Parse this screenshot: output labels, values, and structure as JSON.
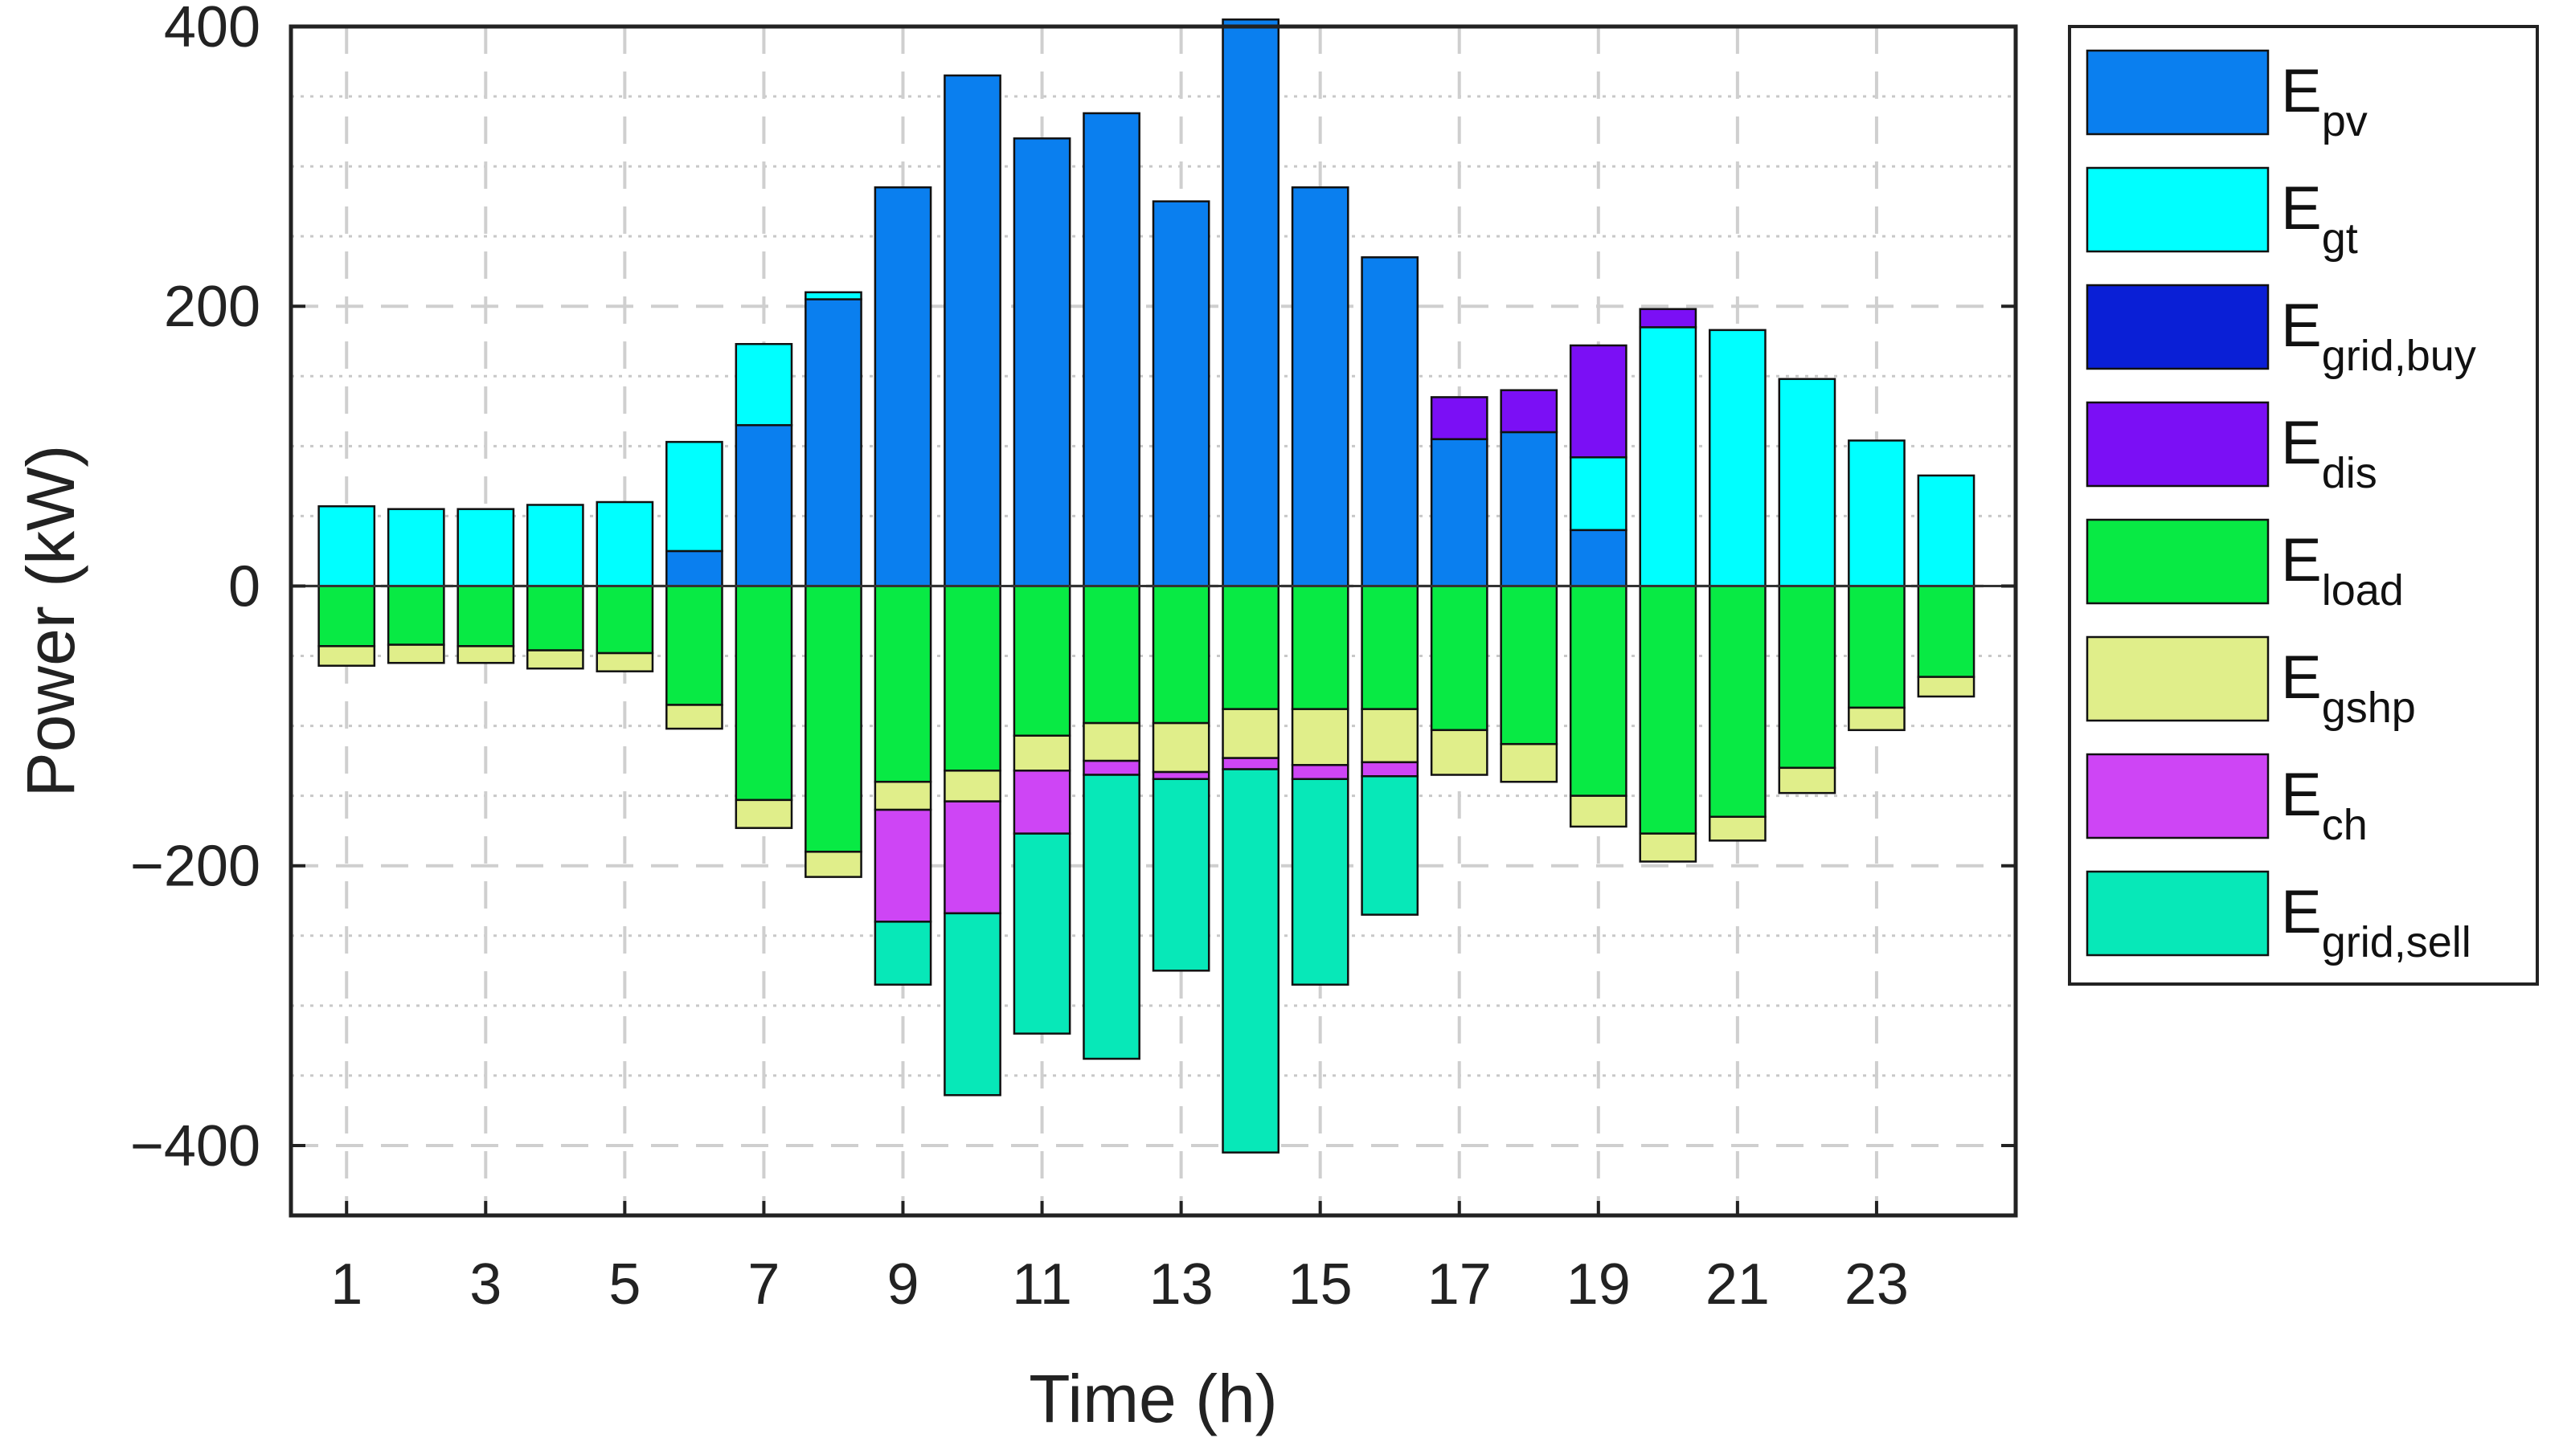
{
  "chart_data": {
    "type": "bar",
    "stacked": true,
    "title": "",
    "xlabel": "Time (h)",
    "ylabel": "Power (kW)",
    "ylim": [
      -450,
      400
    ],
    "yticks": [
      -400,
      -200,
      0,
      200,
      400
    ],
    "ytick_labels": [
      "−400",
      "−200",
      "0",
      "200",
      "400"
    ],
    "xlim": [
      0.2,
      25
    ],
    "xticks": [
      1,
      3,
      5,
      7,
      9,
      11,
      13,
      15,
      17,
      19,
      21,
      23
    ],
    "xtick_labels": [
      "1",
      "3",
      "5",
      "7",
      "9",
      "11",
      "13",
      "15",
      "17",
      "19",
      "21",
      "23"
    ],
    "grid": true,
    "legend_position": "outside-right",
    "categories": [
      1,
      2,
      3,
      4,
      5,
      6,
      7,
      8,
      9,
      10,
      11,
      12,
      13,
      14,
      15,
      16,
      17,
      18,
      19,
      20,
      21,
      22,
      23,
      24
    ],
    "series": [
      {
        "name": "E",
        "sub": "pv",
        "color": "#0A7FEF",
        "values": [
          0,
          0,
          0,
          0,
          0,
          25,
          115,
          205,
          285,
          365,
          320,
          338,
          275,
          405,
          285,
          235,
          105,
          110,
          40,
          0,
          0,
          0,
          0,
          0
        ]
      },
      {
        "name": "E",
        "sub": "gt",
        "color": "#00FFFF",
        "values": [
          57,
          55,
          55,
          58,
          60,
          78,
          58,
          5,
          0,
          0,
          0,
          0,
          0,
          0,
          0,
          0,
          0,
          0,
          52,
          185,
          183,
          148,
          104,
          79
        ]
      },
      {
        "name": "E",
        "sub": "grid,buy",
        "color": "#0A1FD6",
        "values": [
          0,
          0,
          0,
          0,
          0,
          0,
          0,
          0,
          0,
          0,
          0,
          0,
          0,
          0,
          0,
          0,
          0,
          0,
          0,
          0,
          0,
          0,
          0,
          0
        ]
      },
      {
        "name": "E",
        "sub": "dis",
        "color": "#7B0FF5",
        "values": [
          0,
          0,
          0,
          0,
          0,
          0,
          0,
          0,
          0,
          0,
          0,
          0,
          0,
          0,
          0,
          0,
          30,
          30,
          80,
          13,
          0,
          0,
          0,
          0
        ]
      },
      {
        "name": "E",
        "sub": "load",
        "color": "#08EA44",
        "values": [
          -43,
          -42,
          -43,
          -46,
          -48,
          -85,
          -153,
          -190,
          -140,
          -132,
          -107,
          -98,
          -98,
          -88,
          -88,
          -88,
          -103,
          -113,
          -150,
          -177,
          -165,
          -130,
          -87,
          -65
        ]
      },
      {
        "name": "E",
        "sub": "gshp",
        "color": "#E0EE8A",
        "values": [
          -14,
          -13,
          -12,
          -13,
          -13,
          -17,
          -20,
          -18,
          -20,
          -22,
          -25,
          -27,
          -35,
          -35,
          -40,
          -38,
          -32,
          -27,
          -22,
          -20,
          -17,
          -18,
          -16,
          -14
        ]
      },
      {
        "name": "E",
        "sub": "ch",
        "color": "#CE45F5",
        "values": [
          0,
          0,
          0,
          0,
          0,
          0,
          0,
          0,
          -80,
          -80,
          -45,
          -10,
          -5,
          -8,
          -10,
          -10,
          0,
          0,
          0,
          0,
          0,
          0,
          0,
          0
        ]
      },
      {
        "name": "E",
        "sub": "grid,sell",
        "color": "#07E8B8",
        "values": [
          0,
          0,
          0,
          0,
          0,
          0,
          0,
          0,
          -45,
          -130,
          -143,
          -203,
          -137,
          -274,
          -147,
          -99,
          0,
          0,
          0,
          0,
          0,
          0,
          0,
          0
        ]
      }
    ]
  }
}
